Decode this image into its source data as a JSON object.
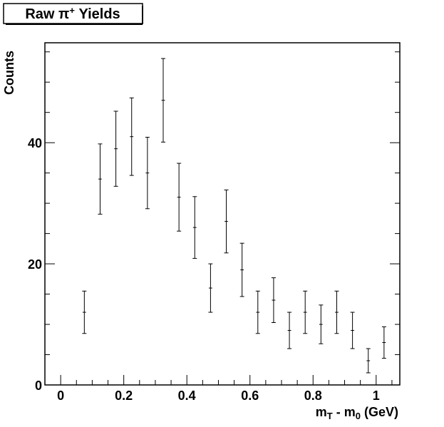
{
  "chart_data": {
    "type": "scatter",
    "title": "Raw π⁺ Yields",
    "xlabel": "m_T - m_0 (GeV)",
    "ylabel": "Counts",
    "xlim": [
      -0.05,
      1.075
    ],
    "ylim": [
      0,
      56.5
    ],
    "x_ticks": [
      0,
      0.2,
      0.4,
      0.6,
      0.8,
      1
    ],
    "x_tick_labels": [
      "0",
      "0.2",
      "0.4",
      "0.6",
      "0.8",
      "1"
    ],
    "y_ticks": [
      0,
      20,
      40
    ],
    "y_tick_labels": [
      "0",
      "20",
      "40"
    ],
    "grid": false,
    "legend": "none",
    "series": [
      {
        "x": [
          0.075,
          0.125,
          0.175,
          0.225,
          0.275,
          0.325,
          0.375,
          0.425,
          0.475,
          0.525,
          0.575,
          0.625,
          0.675,
          0.725,
          0.775,
          0.825,
          0.875,
          0.925,
          0.975,
          1.025
        ],
        "y": [
          12,
          34,
          39,
          41,
          35,
          47,
          31,
          26,
          16,
          27,
          19,
          12,
          14,
          9,
          12,
          10,
          12,
          9,
          4,
          7
        ],
        "yerr": [
          3.5,
          5.8,
          6.2,
          6.4,
          5.9,
          6.9,
          5.6,
          5.1,
          4.0,
          5.2,
          4.4,
          3.5,
          3.7,
          3.0,
          3.5,
          3.2,
          3.5,
          3.0,
          2.0,
          2.6
        ],
        "xerr": 0.025,
        "color": "#000000"
      }
    ]
  }
}
